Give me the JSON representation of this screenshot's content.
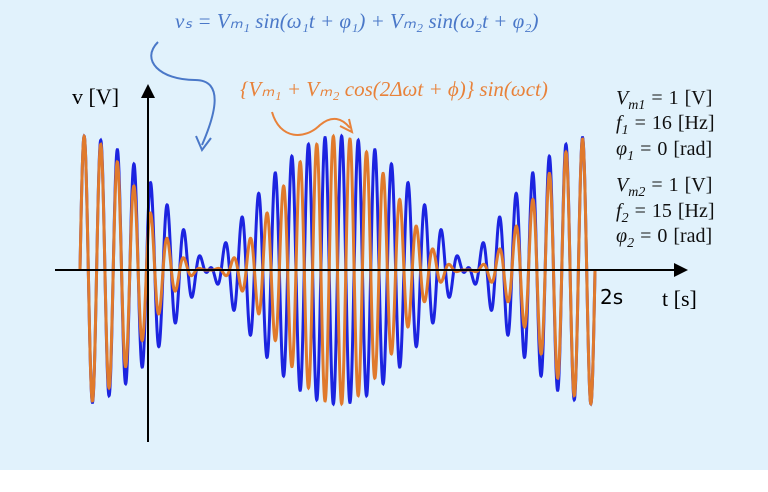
{
  "equation_sum": "vₛ = Vₘ₁ sin(ω₁t + φ₁) + Vₘ₂ sin(ω₂t + φ₂)",
  "equation_envelope": "{Vₘ₁ + Vₘ₂ cos(2Δωt + ϕ)} sin(ωct)",
  "y_axis_label": "v [V]",
  "x_axis_label": "t [s]",
  "t_end": {
    "value": 2,
    "label": "2s"
  },
  "params": [
    {
      "lhs": "V",
      "sub": "m1",
      "rel": "=",
      "value": 1,
      "unit": "[V]"
    },
    {
      "lhs": "f",
      "sub": "1",
      "rel": "=",
      "value": 16,
      "unit": "[Hz]"
    },
    {
      "lhs": "φ",
      "sub": "1",
      "rel": "=",
      "value": 0,
      "unit": "[rad]"
    },
    {
      "lhs": "V",
      "sub": "m2",
      "rel": "=",
      "value": 1,
      "unit": "[V]"
    },
    {
      "lhs": "f",
      "sub": "2",
      "rel": "=",
      "value": 15,
      "unit": "[Hz]"
    },
    {
      "lhs": "φ",
      "sub": "2",
      "rel": "=",
      "value": 0,
      "unit": "[rad]"
    }
  ],
  "waveforms": [
    {
      "color": "#1c24e0"
    },
    {
      "color": "#e07a2c"
    }
  ]
}
